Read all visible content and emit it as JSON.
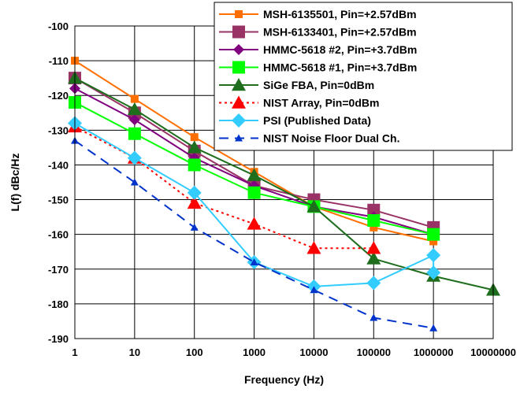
{
  "chart_data": {
    "type": "line",
    "xlabel": "Frequency (Hz)",
    "ylabel": "L(f) dBc/Hz",
    "x_scale": "log",
    "xlim": [
      1,
      10000000
    ],
    "ylim": [
      -190,
      -100
    ],
    "grid": true,
    "legend_position": "top-right",
    "x_ticks": [
      "1",
      "10",
      "100",
      "1000",
      "10000",
      "100000",
      "1000000",
      "10000000"
    ],
    "y_ticks": [
      "-100",
      "-110",
      "-120",
      "-130",
      "-140",
      "-150",
      "-160",
      "-170",
      "-180",
      "-190"
    ],
    "series": [
      {
        "name": "MSH-6135501, Pin=+2.57dBm",
        "color": "#ff6f00",
        "marker": "square-small",
        "dash": "solid",
        "x": [
          1,
          10,
          100,
          1000,
          10000,
          100000,
          1000000
        ],
        "y": [
          -110,
          -121,
          -132,
          -142,
          -152,
          -158,
          -162
        ]
      },
      {
        "name": "MSH-6133401, Pin=+2.57dBm",
        "color": "#993366",
        "marker": "square",
        "dash": "solid",
        "x": [
          1,
          10,
          100,
          1000,
          10000,
          100000,
          1000000
        ],
        "y": [
          -115,
          -125,
          -136,
          -146,
          -150,
          -153,
          -158
        ]
      },
      {
        "name": "HMMC-5618 #2, Pin=+3.7dBm",
        "color": "#800080",
        "marker": "diamond-small",
        "dash": "solid",
        "x": [
          1,
          10,
          100,
          1000,
          10000,
          100000,
          1000000
        ],
        "y": [
          -118,
          -127,
          -138,
          -146,
          -152,
          -155,
          -160
        ]
      },
      {
        "name": "HMMC-5618 #1, Pin=+3.7dBm",
        "color": "#00ff00",
        "marker": "square",
        "dash": "solid",
        "x": [
          1,
          10,
          100,
          1000,
          10000,
          100000,
          1000000
        ],
        "y": [
          -122,
          -131,
          -140,
          -148,
          -152,
          -156,
          -160
        ]
      },
      {
        "name": "SiGe FBA, Pin=0dBm",
        "color": "#1e6e1e",
        "marker": "triangle",
        "dash": "solid",
        "x": [
          1,
          10,
          100,
          1000,
          10000,
          100000,
          1000000,
          10000000
        ],
        "y": [
          -115,
          -124,
          -135,
          -143,
          -152,
          -167,
          -172,
          -176
        ]
      },
      {
        "name": "NIST Array, Pin=0dBm",
        "color": "#ff0000",
        "marker": "triangle-red",
        "dash": "dotted",
        "x": [
          1,
          10,
          100,
          1000,
          10000,
          100000
        ],
        "y": [
          -129,
          -138,
          -151,
          -157,
          -164,
          -164
        ]
      },
      {
        "name": "PSI (Published Data)",
        "color": "#33ccff",
        "marker": "diamond",
        "dash": "solid",
        "x": [
          1,
          10,
          100,
          1000,
          10000,
          100000,
          1000000,
          1000000
        ],
        "y": [
          -128,
          -138,
          -148,
          -168,
          -175,
          -174,
          -166,
          -171
        ]
      },
      {
        "name": "NIST Noise Floor Dual Ch.",
        "color": "#0033cc",
        "marker": "triangle-small",
        "dash": "dashed",
        "x": [
          1,
          10,
          100,
          1000,
          10000,
          100000,
          1000000
        ],
        "y": [
          -133,
          -145,
          -158,
          -168,
          -176,
          -184,
          -187
        ]
      }
    ]
  }
}
